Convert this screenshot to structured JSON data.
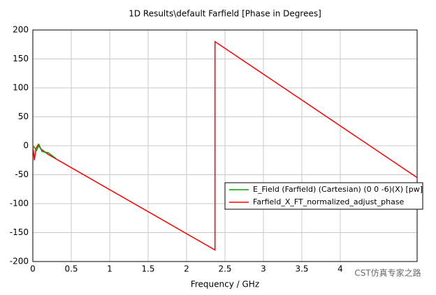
{
  "chart_data": {
    "type": "line",
    "title": "1D Results\\default Farfield [Phase in Degrees]",
    "x_label": "Frequency / GHz",
    "annotation": "CST仿真专家之路",
    "xlim": [
      0,
      5
    ],
    "xticks": [
      0,
      0.5,
      1,
      1.5,
      2,
      2.5,
      3,
      3.5,
      4
    ],
    "ylim": [
      -200,
      200
    ],
    "yticks": [
      -200,
      -150,
      -100,
      -50,
      0,
      50,
      100,
      150,
      200
    ],
    "grid": true,
    "legend": "lower right",
    "series": [
      {
        "name": "E_Field (Farfield) (Cartesian) (0 0 -6)(X) [pw]",
        "color": "#00a000",
        "x": [
          0,
          0.02,
          0.05,
          0.08,
          0.12,
          0.2,
          0.3
        ],
        "values": [
          0,
          -3,
          -8,
          2,
          -10,
          -12,
          -22
        ]
      },
      {
        "name": "Farfield_X_FT_normalized_adjust_phase",
        "color": "#ff0000",
        "x": [
          0,
          0.02,
          0.04,
          0.07,
          0.1,
          0.2,
          2.37,
          2.37,
          5
        ],
        "values": [
          0,
          -25,
          -5,
          2,
          -5,
          -15,
          -180,
          180,
          -55
        ]
      }
    ]
  }
}
